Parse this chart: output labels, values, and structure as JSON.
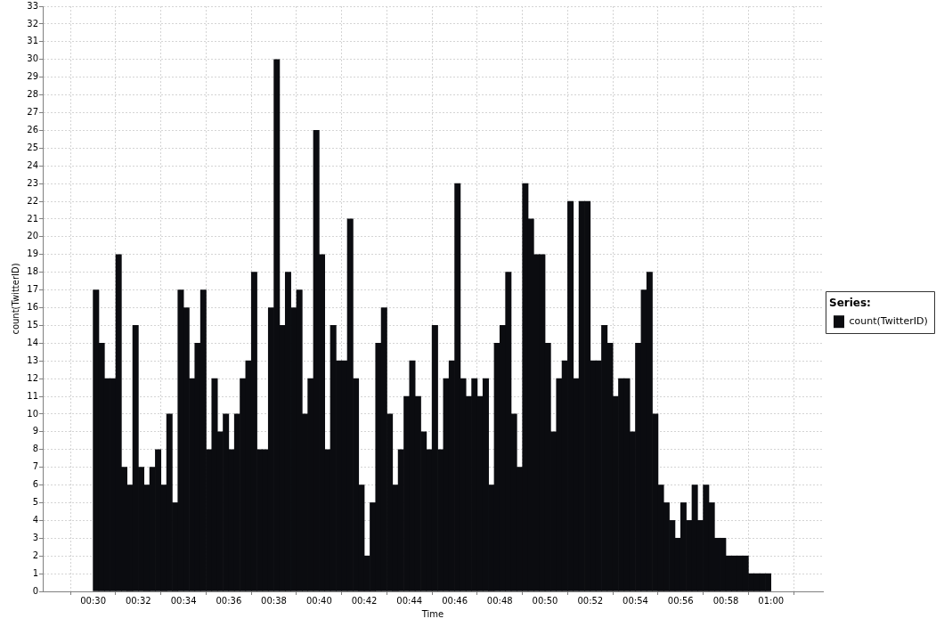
{
  "chart_data": {
    "type": "bar",
    "xlabel": "Time",
    "ylabel": "count(TwitterID)",
    "legend_title": "Series:",
    "legend": "right",
    "grid": true,
    "xlim": [
      0.4808,
      1.0203
    ],
    "xticks": [
      {
        "value": 0.5,
        "label": "00:30"
      },
      {
        "value": 0.5333,
        "label": "00:32"
      },
      {
        "value": 0.5667,
        "label": "00:34"
      },
      {
        "value": 0.6,
        "label": "00:36"
      },
      {
        "value": 0.6333,
        "label": "00:38"
      },
      {
        "value": 0.6667,
        "label": "00:40"
      },
      {
        "value": 0.7,
        "label": "00:42"
      },
      {
        "value": 0.7333,
        "label": "00:44"
      },
      {
        "value": 0.7667,
        "label": "00:46"
      },
      {
        "value": 0.8,
        "label": "00:48"
      },
      {
        "value": 0.8333,
        "label": "00:50"
      },
      {
        "value": 0.8667,
        "label": "00:52"
      },
      {
        "value": 0.9,
        "label": "00:54"
      },
      {
        "value": 0.9333,
        "label": "00:56"
      },
      {
        "value": 0.9667,
        "label": "00:58"
      },
      {
        "value": 1,
        "label": "01:00"
      }
    ],
    "ylim": [
      0,
      33
    ],
    "yticks": [
      0,
      1,
      2,
      3,
      4,
      5,
      6,
      7,
      8,
      9,
      10,
      11,
      12,
      13,
      14,
      15,
      16,
      17,
      18,
      19,
      20,
      21,
      22,
      23,
      24,
      25,
      26,
      27,
      28,
      29,
      30,
      31,
      32,
      33
    ],
    "x": [
      0.5021,
      0.5063,
      0.5104,
      0.5146,
      0.5188,
      0.5229,
      0.5271,
      0.5313,
      0.5354,
      0.5396,
      0.5438,
      0.5479,
      0.5521,
      0.5563,
      0.5604,
      0.5646,
      0.5688,
      0.5729,
      0.5771,
      0.5813,
      0.5854,
      0.5896,
      0.5938,
      0.5979,
      0.6021,
      0.6063,
      0.6104,
      0.6146,
      0.6188,
      0.6229,
      0.6271,
      0.6313,
      0.6354,
      0.6396,
      0.6438,
      0.6479,
      0.6521,
      0.6563,
      0.6604,
      0.6646,
      0.6688,
      0.6729,
      0.6771,
      0.6813,
      0.6854,
      0.6896,
      0.6938,
      0.6979,
      0.7021,
      0.7063,
      0.7104,
      0.7146,
      0.7188,
      0.7229,
      0.7271,
      0.7313,
      0.7354,
      0.7396,
      0.7438,
      0.7479,
      0.7521,
      0.7563,
      0.7604,
      0.7646,
      0.7688,
      0.7729,
      0.7771,
      0.7813,
      0.7854,
      0.7896,
      0.7938,
      0.7979,
      0.8021,
      0.8063,
      0.8104,
      0.8146,
      0.8188,
      0.8229,
      0.8271,
      0.8313,
      0.8354,
      0.8396,
      0.8438,
      0.8479,
      0.8521,
      0.8563,
      0.8604,
      0.8646,
      0.8688,
      0.8729,
      0.8771,
      0.8813,
      0.8854,
      0.8896,
      0.8938,
      0.8979,
      0.9021,
      0.9063,
      0.9104,
      0.9146,
      0.9188,
      0.9229,
      0.9271,
      0.9313,
      0.9354,
      0.9396,
      0.9438,
      0.9479,
      0.9521,
      0.9563,
      0.9604,
      0.9646,
      0.9688,
      0.9729,
      0.9771,
      0.9813,
      0.9854,
      0.9896,
      0.9938,
      0.9979
    ],
    "series": [
      {
        "name": "count(TwitterID)",
        "color": "#0b0c10",
        "values": [
          17,
          14,
          12,
          12,
          19,
          7,
          6,
          15,
          7,
          6,
          7,
          8,
          6,
          10,
          5,
          17,
          16,
          12,
          14,
          17,
          8,
          12,
          9,
          10,
          8,
          10,
          12,
          13,
          18,
          8,
          8,
          16,
          30,
          15,
          18,
          16,
          17,
          10,
          12,
          26,
          19,
          8,
          15,
          13,
          13,
          21,
          12,
          6,
          2,
          5,
          14,
          16,
          10,
          6,
          8,
          11,
          13,
          11,
          9,
          8,
          15,
          8,
          12,
          13,
          23,
          12,
          11,
          12,
          11,
          12,
          6,
          14,
          15,
          18,
          10,
          7,
          23,
          21,
          19,
          19,
          14,
          9,
          12,
          13,
          22,
          12,
          22,
          22,
          13,
          13,
          15,
          14,
          11,
          12,
          12,
          9,
          14,
          17,
          18,
          10,
          6,
          5,
          4,
          3,
          5,
          4,
          6,
          4,
          6,
          5,
          3,
          3,
          2,
          2,
          2,
          2,
          1,
          1,
          1,
          1
        ]
      }
    ]
  }
}
